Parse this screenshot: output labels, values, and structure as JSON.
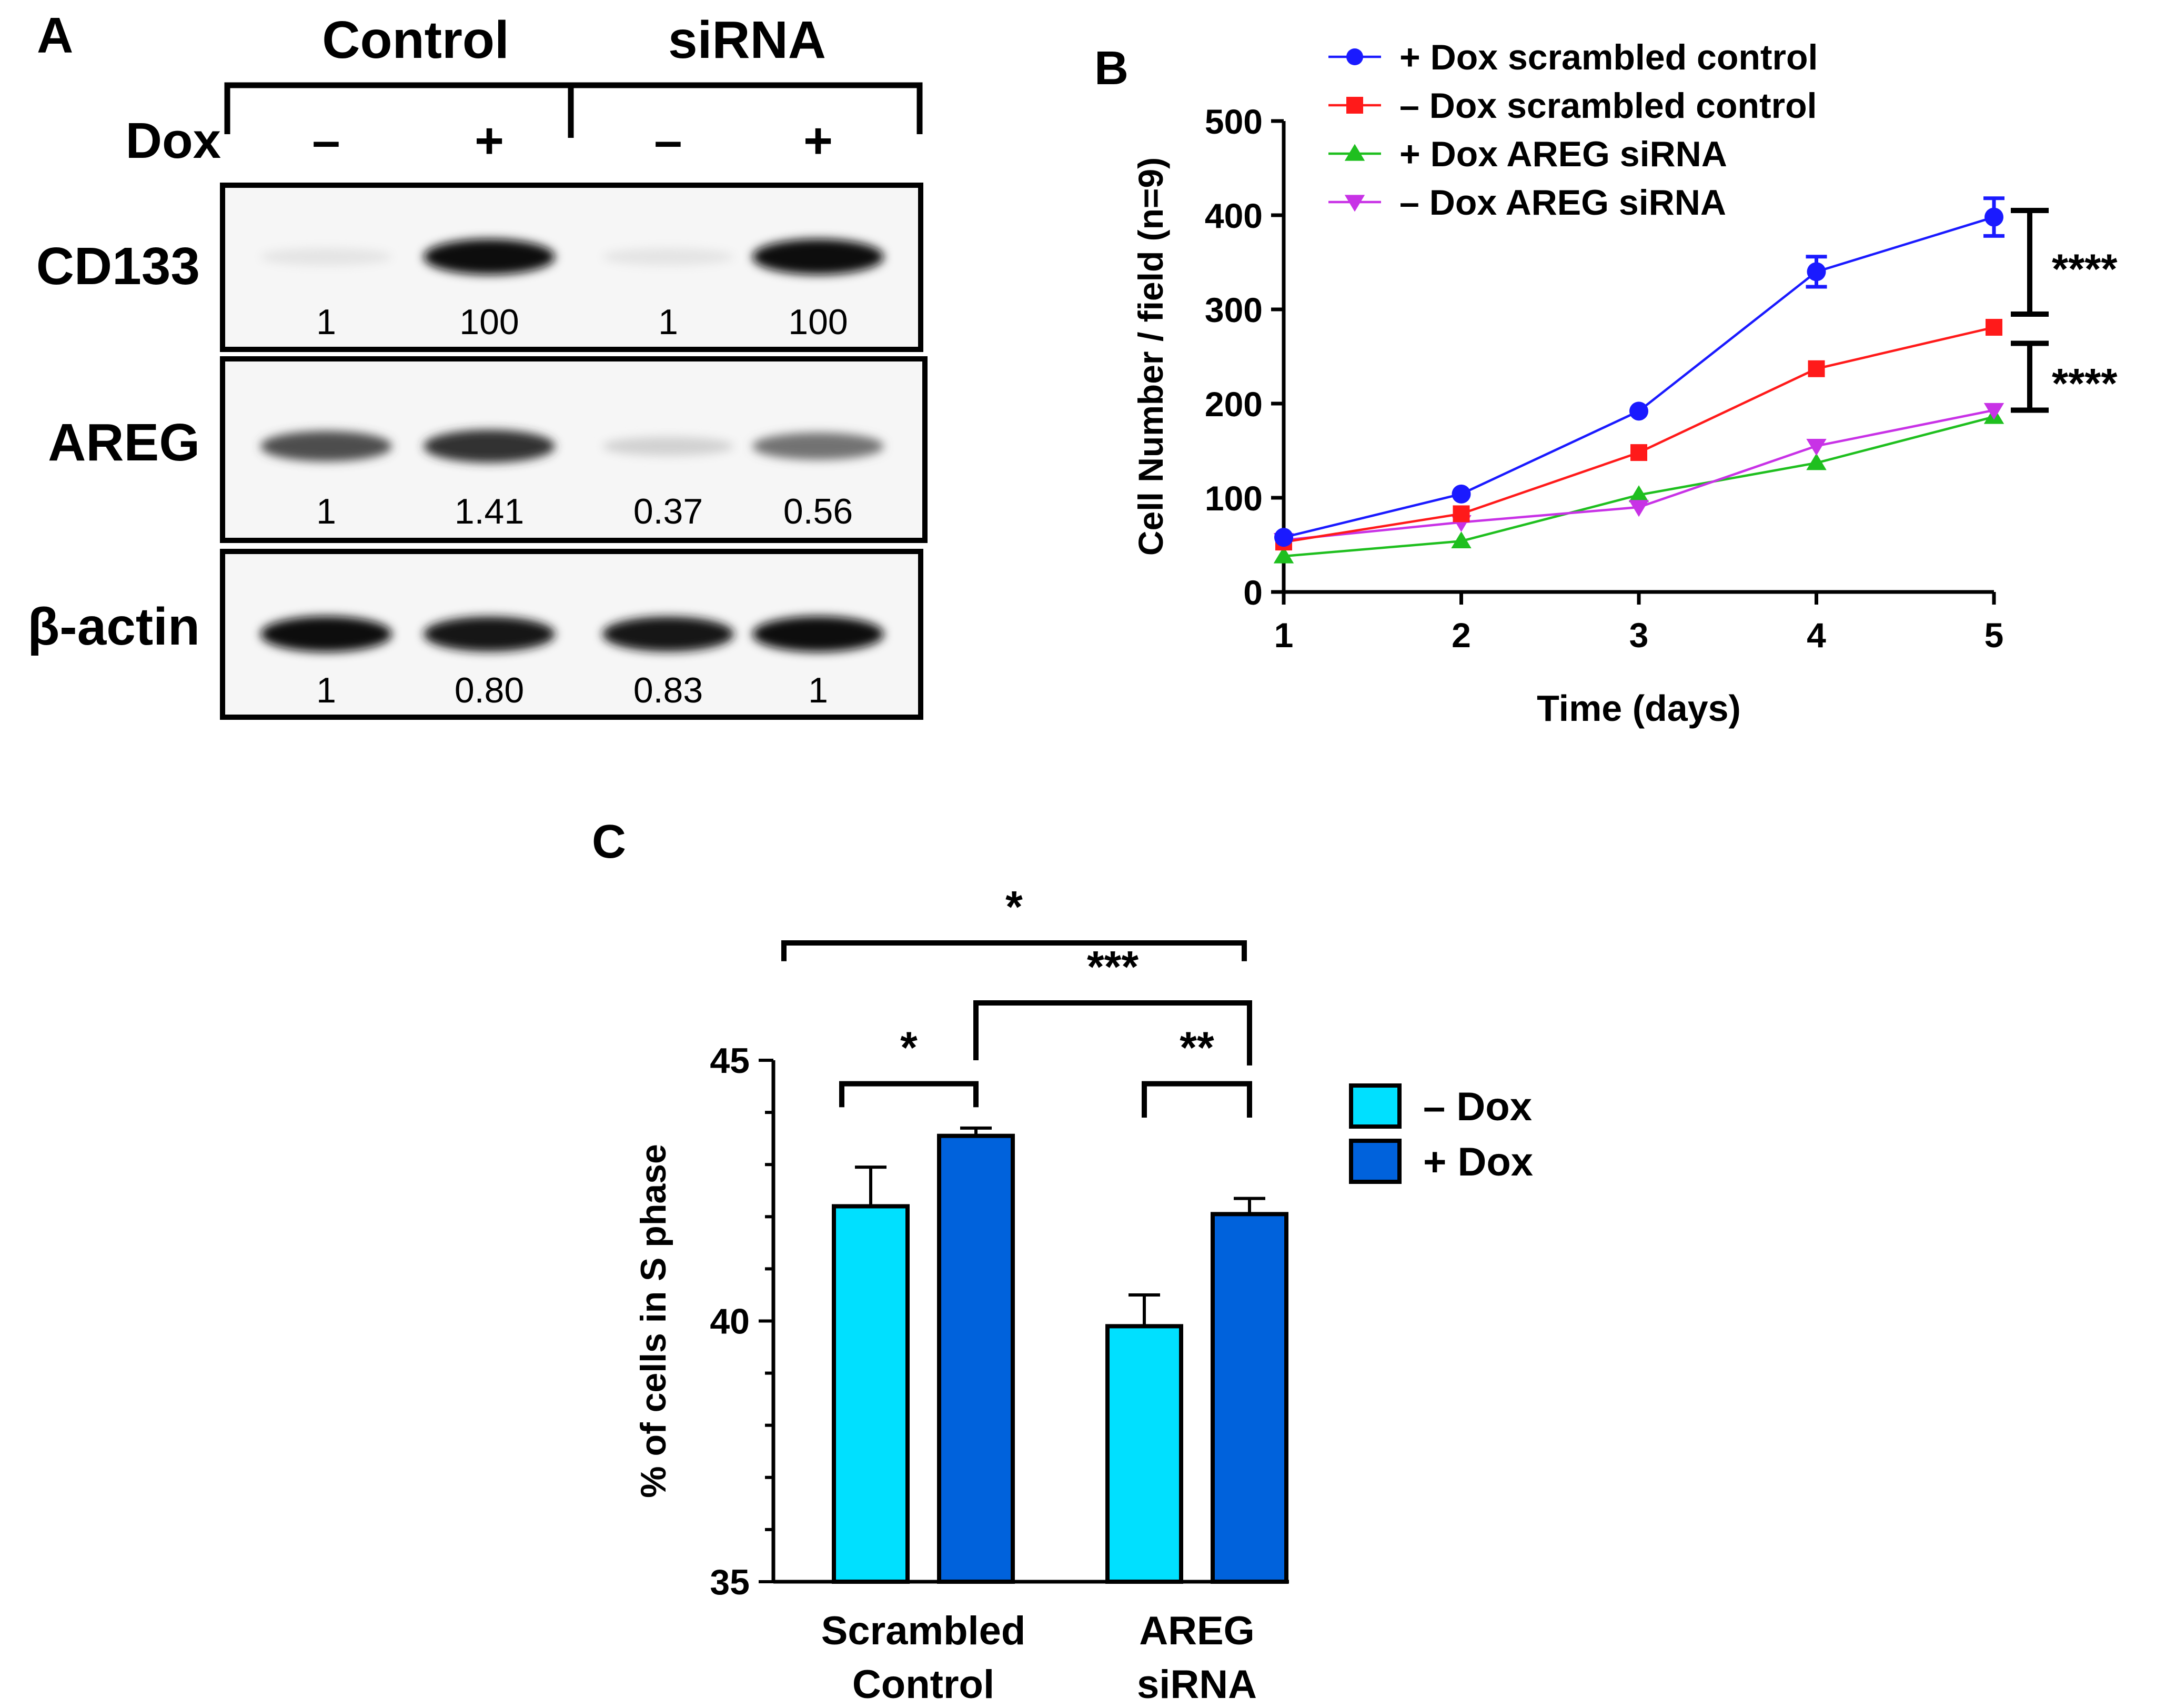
{
  "panel_a": {
    "label": "A",
    "group_labels": [
      "Control",
      "siRNA"
    ],
    "dox_label": "Dox",
    "dox_signs": [
      "–",
      "+",
      "–",
      "+"
    ],
    "rows": [
      {
        "name": "CD133",
        "values": [
          "1",
          "100",
          "1",
          "100"
        ],
        "intensity": [
          0.03,
          1.0,
          0.03,
          1.0
        ]
      },
      {
        "name": "AREG",
        "values": [
          "1",
          "1.41",
          "0.37",
          "0.56"
        ],
        "intensity": [
          0.72,
          0.85,
          0.12,
          0.55
        ]
      },
      {
        "name": "β-actin",
        "values": [
          "1",
          "0.80",
          "0.83",
          "1"
        ],
        "intensity": [
          1.0,
          0.96,
          0.96,
          1.0
        ]
      }
    ]
  },
  "panel_b": {
    "label": "B"
  },
  "panel_c": {
    "label": "C"
  },
  "colors": {
    "blue": "#1a1aff",
    "red": "#ff1a1a",
    "green": "#1fbf1f",
    "magenta": "#c832e6",
    "light_bar": "#00e0ff",
    "dark_bar": "#0062dc"
  },
  "chart_data": [
    {
      "type": "line",
      "xlabel": "Time (days)",
      "ylabel": "Cell Number / field (n=9)",
      "xlim": [
        1,
        5
      ],
      "ylim": [
        0,
        500
      ],
      "xticks": [
        "1",
        "2",
        "3",
        "4",
        "5"
      ],
      "yticks": [
        "0",
        "100",
        "200",
        "300",
        "400",
        "500"
      ],
      "x": [
        1,
        2,
        3,
        4,
        5
      ],
      "series": [
        {
          "name": "+ Dox scrambled control",
          "marker": "circle",
          "color": "#1a1aff",
          "values": [
            58,
            104,
            192,
            340,
            398
          ],
          "errors": [
            0,
            0,
            0,
            16,
            20
          ]
        },
        {
          "name": "– Dox scrambled control",
          "marker": "square",
          "color": "#ff1a1a",
          "values": [
            53,
            83,
            148,
            237,
            281
          ],
          "errors": [
            0,
            0,
            0,
            0,
            0
          ]
        },
        {
          "name": "+ Dox AREG siRNA",
          "marker": "triangle-up",
          "color": "#1fbf1f",
          "values": [
            38,
            54,
            103,
            137,
            186
          ],
          "errors": [
            0,
            0,
            0,
            0,
            0
          ]
        },
        {
          "name": "– Dox AREG siRNA",
          "marker": "triangle-down",
          "color": "#c832e6",
          "values": [
            55,
            74,
            90,
            155,
            193
          ],
          "errors": [
            0,
            0,
            0,
            0,
            0
          ]
        }
      ],
      "significance": [
        {
          "label": "****",
          "from": 295,
          "to": 405
        },
        {
          "label": "****",
          "from": 193,
          "to": 264
        }
      ],
      "legend": "top"
    },
    {
      "type": "bar",
      "ylabel": "% of cells in S phase",
      "ylim": [
        35,
        45
      ],
      "yticks": [
        "35",
        "40",
        "45"
      ],
      "categories": [
        "Scrambled\nControl",
        "AREG\nsiRNA"
      ],
      "category_lines": [
        [
          "Scrambled",
          "Control"
        ],
        [
          "AREG",
          "siRNA"
        ]
      ],
      "series": [
        {
          "name": "– Dox",
          "color": "#00e0ff",
          "values": [
            42.2,
            39.9
          ],
          "errors": [
            0.75,
            0.6
          ]
        },
        {
          "name": "+ Dox",
          "color": "#0062dc",
          "values": [
            43.55,
            42.05
          ],
          "errors": [
            0.15,
            0.3
          ]
        }
      ],
      "significance": [
        {
          "label": "*",
          "from": 0,
          "to": 2,
          "level": 47.25,
          "left_end": 46.9,
          "right_end": 46.9
        },
        {
          "label": "***",
          "from": 1,
          "to": 3,
          "level": 46.1,
          "left_end": 45.0,
          "right_end": 44.9
        },
        {
          "label": "*",
          "from": 0,
          "to": 1,
          "level": 44.55,
          "left_end": 44.1,
          "right_end": 44.1
        },
        {
          "label": "**",
          "from": 2,
          "to": 3,
          "level": 44.55,
          "left_end": 43.9,
          "right_end": 43.9
        }
      ],
      "legend": "right"
    }
  ]
}
